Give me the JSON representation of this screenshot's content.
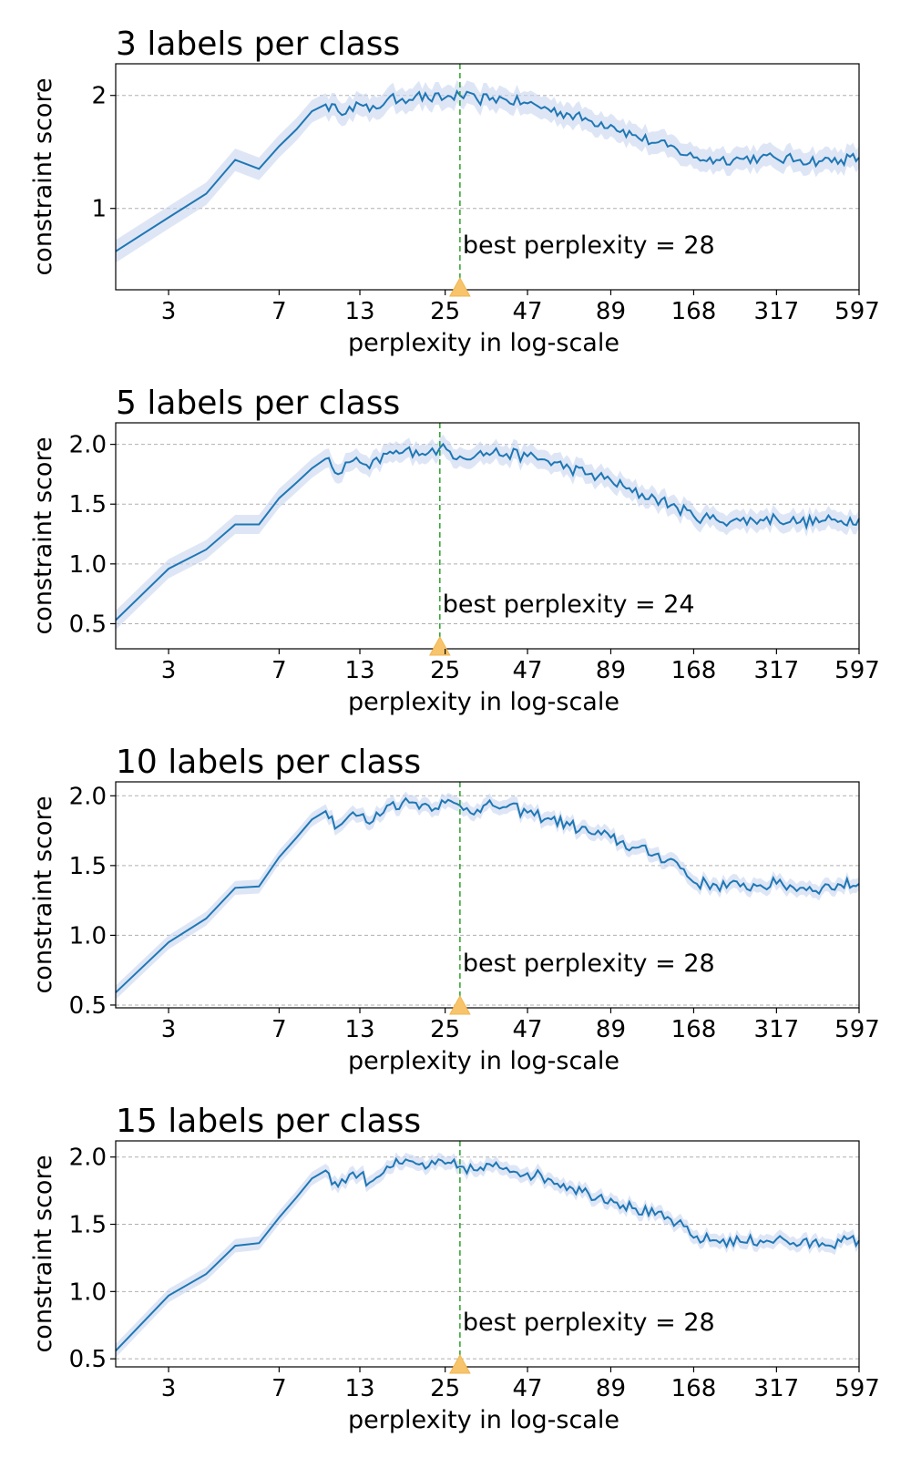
{
  "colors": {
    "line": "#1f77b4",
    "band": "#c8d6f0",
    "grid": "#b0b0b0",
    "best_line": "#2ca02c",
    "marker": "#f7c46c"
  },
  "chart_data": [
    {
      "type": "line",
      "title": "3 labels per class",
      "xlabel": "perplexity in log-scale",
      "ylabel": "constraint score",
      "x_scale": "log",
      "x_ticks": [
        3,
        7,
        13,
        25,
        47,
        89,
        168,
        317,
        597
      ],
      "xlim": [
        2,
        597
      ],
      "y_ticks": [
        1,
        2
      ],
      "ylim": [
        0.28,
        2.28
      ],
      "grid": "horizontal dashed",
      "best_perplexity": 28,
      "annotation": "best perplexity = 28",
      "keypoints": [
        [
          2,
          0.62
        ],
        [
          3,
          0.92
        ],
        [
          4,
          1.13
        ],
        [
          5,
          1.43
        ],
        [
          6,
          1.35
        ],
        [
          7,
          1.55
        ],
        [
          8,
          1.7
        ],
        [
          9,
          1.86
        ],
        [
          10,
          1.92
        ],
        [
          11,
          1.86
        ],
        [
          12,
          1.9
        ],
        [
          13,
          1.92
        ],
        [
          14,
          1.86
        ],
        [
          16,
          1.96
        ],
        [
          18,
          1.97
        ],
        [
          20,
          2.0
        ],
        [
          22,
          1.97
        ],
        [
          25,
          1.98
        ],
        [
          28,
          2.0
        ],
        [
          32,
          1.96
        ],
        [
          36,
          1.98
        ],
        [
          40,
          1.96
        ],
        [
          47,
          1.93
        ],
        [
          55,
          1.88
        ],
        [
          65,
          1.83
        ],
        [
          75,
          1.78
        ],
        [
          89,
          1.74
        ],
        [
          105,
          1.65
        ],
        [
          125,
          1.58
        ],
        [
          148,
          1.52
        ],
        [
          168,
          1.45
        ],
        [
          200,
          1.43
        ],
        [
          240,
          1.44
        ],
        [
          280,
          1.45
        ],
        [
          317,
          1.44
        ],
        [
          380,
          1.43
        ],
        [
          450,
          1.42
        ],
        [
          520,
          1.43
        ],
        [
          597,
          1.45
        ]
      ],
      "jitter": 0.05,
      "band_halfwidth": 0.1
    },
    {
      "type": "line",
      "title": "5 labels per class",
      "xlabel": "perplexity in log-scale",
      "ylabel": "constraint score",
      "x_scale": "log",
      "x_ticks": [
        3,
        7,
        13,
        25,
        47,
        89,
        168,
        317,
        597
      ],
      "xlim": [
        2,
        597
      ],
      "y_ticks": [
        0.5,
        1.0,
        1.5,
        2.0
      ],
      "ylim": [
        0.29,
        2.18
      ],
      "grid": "horizontal dashed",
      "best_perplexity": 24,
      "annotation": "best perplexity = 24",
      "keypoints": [
        [
          2,
          0.53
        ],
        [
          3,
          0.96
        ],
        [
          4,
          1.12
        ],
        [
          5,
          1.33
        ],
        [
          6,
          1.33
        ],
        [
          7,
          1.55
        ],
        [
          8,
          1.68
        ],
        [
          9,
          1.8
        ],
        [
          10,
          1.88
        ],
        [
          11,
          1.75
        ],
        [
          12,
          1.85
        ],
        [
          13,
          1.85
        ],
        [
          14,
          1.8
        ],
        [
          16,
          1.92
        ],
        [
          18,
          1.93
        ],
        [
          20,
          1.95
        ],
        [
          22,
          1.93
        ],
        [
          24,
          1.97
        ],
        [
          28,
          1.9
        ],
        [
          32,
          1.92
        ],
        [
          36,
          1.93
        ],
        [
          40,
          1.92
        ],
        [
          47,
          1.9
        ],
        [
          55,
          1.86
        ],
        [
          65,
          1.8
        ],
        [
          75,
          1.75
        ],
        [
          89,
          1.7
        ],
        [
          105,
          1.6
        ],
        [
          125,
          1.55
        ],
        [
          148,
          1.47
        ],
        [
          168,
          1.4
        ],
        [
          200,
          1.37
        ],
        [
          240,
          1.36
        ],
        [
          280,
          1.37
        ],
        [
          317,
          1.38
        ],
        [
          380,
          1.35
        ],
        [
          450,
          1.36
        ],
        [
          520,
          1.36
        ],
        [
          597,
          1.38
        ]
      ],
      "jitter": 0.05,
      "band_halfwidth": 0.08
    },
    {
      "type": "line",
      "title": "10 labels per class",
      "xlabel": "perplexity in log-scale",
      "ylabel": "constraint score",
      "x_scale": "log",
      "x_ticks": [
        3,
        7,
        13,
        25,
        47,
        89,
        168,
        317,
        597
      ],
      "xlim": [
        2,
        597
      ],
      "y_ticks": [
        0.5,
        1.0,
        1.5,
        2.0
      ],
      "ylim": [
        0.48,
        2.1
      ],
      "grid": "horizontal dashed",
      "best_perplexity": 28,
      "annotation": "best perplexity = 28",
      "keypoints": [
        [
          2,
          0.59
        ],
        [
          3,
          0.95
        ],
        [
          4,
          1.12
        ],
        [
          5,
          1.34
        ],
        [
          6,
          1.35
        ],
        [
          7,
          1.56
        ],
        [
          8,
          1.7
        ],
        [
          9,
          1.83
        ],
        [
          10,
          1.89
        ],
        [
          11,
          1.78
        ],
        [
          12,
          1.86
        ],
        [
          13,
          1.86
        ],
        [
          14,
          1.8
        ],
        [
          16,
          1.93
        ],
        [
          18,
          1.95
        ],
        [
          20,
          1.95
        ],
        [
          22,
          1.93
        ],
        [
          25,
          1.95
        ],
        [
          28,
          1.93
        ],
        [
          32,
          1.9
        ],
        [
          36,
          1.93
        ],
        [
          40,
          1.92
        ],
        [
          47,
          1.88
        ],
        [
          55,
          1.84
        ],
        [
          65,
          1.79
        ],
        [
          75,
          1.74
        ],
        [
          89,
          1.7
        ],
        [
          105,
          1.63
        ],
        [
          125,
          1.58
        ],
        [
          148,
          1.52
        ],
        [
          168,
          1.38
        ],
        [
          200,
          1.36
        ],
        [
          240,
          1.35
        ],
        [
          280,
          1.36
        ],
        [
          317,
          1.37
        ],
        [
          380,
          1.34
        ],
        [
          450,
          1.34
        ],
        [
          520,
          1.36
        ],
        [
          597,
          1.37
        ]
      ],
      "jitter": 0.045,
      "band_halfwidth": 0.05
    },
    {
      "type": "line",
      "title": "15 labels per class",
      "xlabel": "perplexity in log-scale",
      "ylabel": "constraint score",
      "x_scale": "log",
      "x_ticks": [
        3,
        7,
        13,
        25,
        47,
        89,
        168,
        317,
        597
      ],
      "xlim": [
        2,
        597
      ],
      "y_ticks": [
        0.5,
        1.0,
        1.5,
        2.0
      ],
      "ylim": [
        0.44,
        2.12
      ],
      "grid": "horizontal dashed",
      "best_perplexity": 28,
      "annotation": "best perplexity = 28",
      "keypoints": [
        [
          2,
          0.56
        ],
        [
          3,
          0.97
        ],
        [
          4,
          1.13
        ],
        [
          5,
          1.34
        ],
        [
          6,
          1.36
        ],
        [
          7,
          1.55
        ],
        [
          8,
          1.7
        ],
        [
          9,
          1.84
        ],
        [
          10,
          1.9
        ],
        [
          11,
          1.78
        ],
        [
          12,
          1.87
        ],
        [
          13,
          1.87
        ],
        [
          14,
          1.81
        ],
        [
          16,
          1.93
        ],
        [
          18,
          1.95
        ],
        [
          20,
          1.95
        ],
        [
          22,
          1.93
        ],
        [
          25,
          1.95
        ],
        [
          28,
          1.93
        ],
        [
          32,
          1.9
        ],
        [
          36,
          1.93
        ],
        [
          40,
          1.92
        ],
        [
          47,
          1.88
        ],
        [
          55,
          1.84
        ],
        [
          65,
          1.78
        ],
        [
          75,
          1.73
        ],
        [
          89,
          1.69
        ],
        [
          105,
          1.62
        ],
        [
          125,
          1.57
        ],
        [
          148,
          1.51
        ],
        [
          168,
          1.4
        ],
        [
          200,
          1.38
        ],
        [
          240,
          1.37
        ],
        [
          280,
          1.38
        ],
        [
          317,
          1.39
        ],
        [
          380,
          1.35
        ],
        [
          450,
          1.36
        ],
        [
          520,
          1.37
        ],
        [
          597,
          1.38
        ]
      ],
      "jitter": 0.045,
      "band_halfwidth": 0.05
    }
  ]
}
